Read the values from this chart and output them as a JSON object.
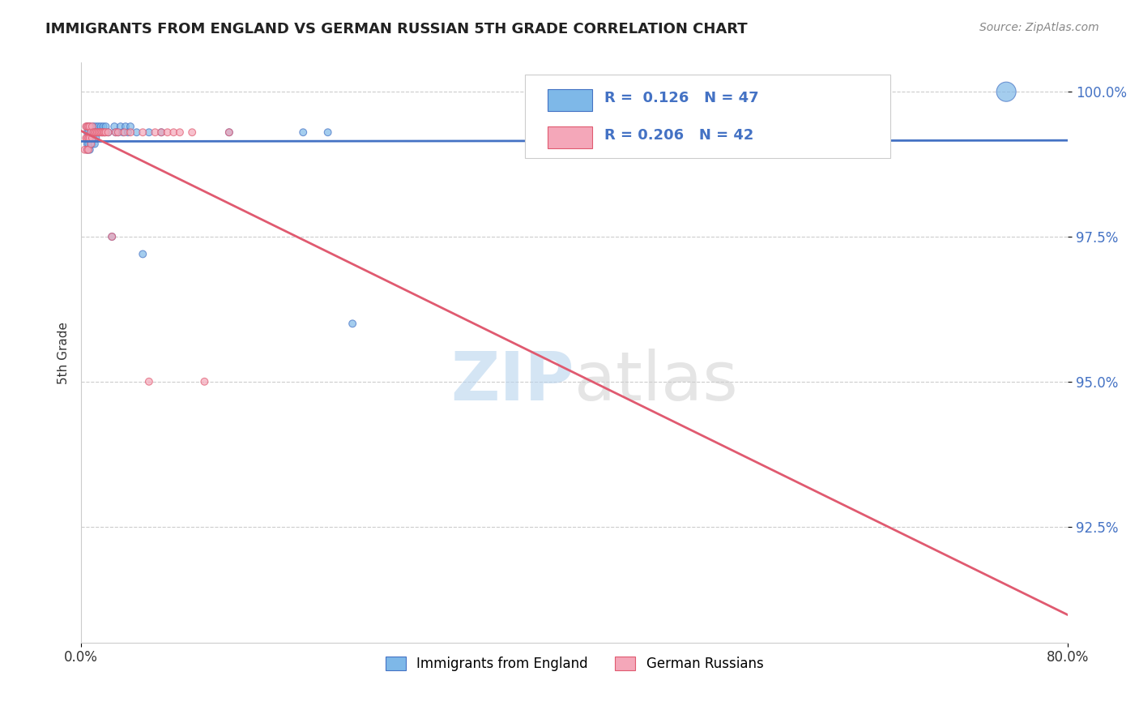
{
  "title": "IMMIGRANTS FROM ENGLAND VS GERMAN RUSSIAN 5TH GRADE CORRELATION CHART",
  "source": "Source: ZipAtlas.com",
  "xlabel": "",
  "ylabel": "5th Grade",
  "xmin": 0.0,
  "xmax": 0.8,
  "ymin": 0.905,
  "ymax": 1.005,
  "yticks": [
    0.925,
    0.95,
    0.975,
    1.0
  ],
  "ytick_labels": [
    "92.5%",
    "95.0%",
    "97.5%",
    "100.0%"
  ],
  "xtick_labels": [
    "0.0%",
    "80.0%"
  ],
  "blue_r": 0.126,
  "blue_n": 47,
  "pink_r": 0.206,
  "pink_n": 42,
  "blue_color": "#7eb8e8",
  "pink_color": "#f4a7b9",
  "blue_line_color": "#4472c4",
  "pink_line_color": "#e05a70",
  "legend_blue_label": "Immigrants from England",
  "legend_pink_label": "German Russians",
  "blue_scatter_x": [
    0.005,
    0.005,
    0.005,
    0.005,
    0.006,
    0.006,
    0.006,
    0.007,
    0.007,
    0.007,
    0.008,
    0.008,
    0.009,
    0.009,
    0.01,
    0.01,
    0.011,
    0.011,
    0.012,
    0.012,
    0.013,
    0.014,
    0.015,
    0.016,
    0.017,
    0.018,
    0.019,
    0.02,
    0.022,
    0.025,
    0.027,
    0.028,
    0.03,
    0.032,
    0.034,
    0.036,
    0.038,
    0.04,
    0.045,
    0.05,
    0.055,
    0.065,
    0.12,
    0.18,
    0.2,
    0.22,
    0.75
  ],
  "blue_scatter_y": [
    0.994,
    0.993,
    0.991,
    0.99,
    0.993,
    0.992,
    0.991,
    0.994,
    0.992,
    0.99,
    0.993,
    0.991,
    0.993,
    0.991,
    0.994,
    0.992,
    0.993,
    0.991,
    0.994,
    0.992,
    0.993,
    0.994,
    0.993,
    0.994,
    0.993,
    0.994,
    0.993,
    0.994,
    0.993,
    0.975,
    0.994,
    0.993,
    0.993,
    0.994,
    0.993,
    0.994,
    0.993,
    0.994,
    0.993,
    0.972,
    0.993,
    0.993,
    0.993,
    0.993,
    0.993,
    0.96,
    1.0
  ],
  "blue_scatter_sizes": [
    40,
    40,
    40,
    40,
    40,
    40,
    40,
    40,
    40,
    40,
    40,
    40,
    40,
    40,
    40,
    40,
    40,
    40,
    40,
    40,
    40,
    40,
    40,
    40,
    40,
    40,
    40,
    40,
    40,
    40,
    40,
    40,
    40,
    40,
    40,
    40,
    40,
    40,
    40,
    40,
    40,
    40,
    40,
    40,
    40,
    40,
    300
  ],
  "pink_scatter_x": [
    0.003,
    0.004,
    0.004,
    0.005,
    0.005,
    0.005,
    0.006,
    0.006,
    0.006,
    0.007,
    0.007,
    0.008,
    0.008,
    0.009,
    0.009,
    0.01,
    0.011,
    0.012,
    0.013,
    0.014,
    0.015,
    0.016,
    0.017,
    0.018,
    0.019,
    0.02,
    0.022,
    0.025,
    0.028,
    0.03,
    0.035,
    0.04,
    0.05,
    0.055,
    0.06,
    0.065,
    0.07,
    0.075,
    0.08,
    0.09,
    0.1,
    0.12
  ],
  "pink_scatter_y": [
    0.99,
    0.994,
    0.992,
    0.994,
    0.992,
    0.99,
    0.994,
    0.992,
    0.99,
    0.994,
    0.992,
    0.993,
    0.991,
    0.994,
    0.992,
    0.993,
    0.993,
    0.993,
    0.993,
    0.993,
    0.993,
    0.993,
    0.993,
    0.993,
    0.993,
    0.993,
    0.993,
    0.975,
    0.993,
    0.993,
    0.993,
    0.993,
    0.993,
    0.95,
    0.993,
    0.993,
    0.993,
    0.993,
    0.993,
    0.993,
    0.95,
    0.993
  ],
  "pink_scatter_sizes": [
    40,
    40,
    40,
    40,
    40,
    40,
    40,
    40,
    40,
    40,
    40,
    40,
    40,
    40,
    40,
    40,
    40,
    40,
    40,
    40,
    40,
    40,
    40,
    40,
    40,
    40,
    40,
    40,
    40,
    40,
    40,
    40,
    40,
    40,
    40,
    40,
    40,
    40,
    40,
    40,
    40,
    40
  ],
  "watermark_zip": "ZIP",
  "watermark_atlas": "atlas",
  "background_color": "#ffffff",
  "grid_color": "#cccccc"
}
